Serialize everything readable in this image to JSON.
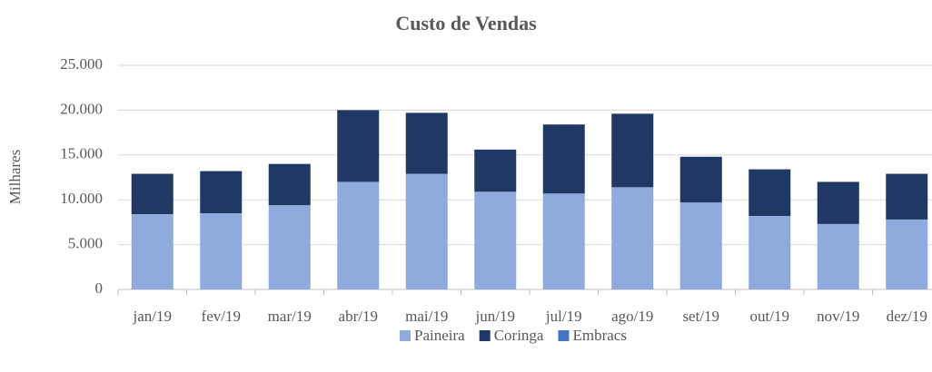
{
  "chart_data": {
    "type": "bar",
    "stacked": true,
    "title": "Custo de Vendas",
    "y_label": "Milhares",
    "categories": [
      "jan/19",
      "fev/19",
      "mar/19",
      "abr/19",
      "mai/19",
      "jun/19",
      "jul/19",
      "ago/19",
      "set/19",
      "out/19",
      "nov/19",
      "dez/19"
    ],
    "series": [
      {
        "name": "Paineira",
        "color": "#8faadc",
        "values": [
          8400,
          8500,
          9400,
          12000,
          12900,
          10900,
          10700,
          11400,
          9700,
          8200,
          7300,
          7800
        ]
      },
      {
        "name": "Coringa",
        "color": "#1f3864",
        "values": [
          4500,
          4700,
          4600,
          8000,
          6800,
          4700,
          7700,
          8200,
          5100,
          5200,
          4700,
          5100
        ]
      },
      {
        "name": "Embracs",
        "color": "#4472c4",
        "values": [
          0,
          0,
          0,
          0,
          0,
          0,
          0,
          0,
          0,
          0,
          0,
          0
        ]
      }
    ],
    "ylim": [
      0,
      25000
    ],
    "yticks": [
      0,
      {
        "value": 5000,
        "label": "5.000"
      },
      {
        "value": 10000,
        "label": "10.000"
      },
      {
        "value": 15000,
        "label": "15.000"
      },
      {
        "value": 20000,
        "label": "20.000"
      },
      {
        "value": 25000,
        "label": "25.000"
      }
    ],
    "grid": true,
    "legend": "bottom"
  }
}
